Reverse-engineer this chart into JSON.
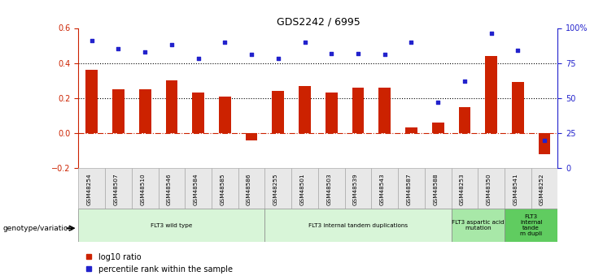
{
  "title": "GDS2242 / 6995",
  "samples": [
    "GSM48254",
    "GSM48507",
    "GSM48510",
    "GSM48546",
    "GSM48584",
    "GSM48585",
    "GSM48586",
    "GSM48255",
    "GSM48501",
    "GSM48503",
    "GSM48539",
    "GSM48543",
    "GSM48587",
    "GSM48588",
    "GSM48253",
    "GSM48350",
    "GSM48541",
    "GSM48252"
  ],
  "log10_ratio": [
    0.36,
    0.25,
    0.25,
    0.3,
    0.23,
    0.21,
    -0.04,
    0.24,
    0.27,
    0.23,
    0.26,
    0.26,
    0.03,
    0.06,
    0.15,
    0.44,
    0.29,
    -0.12
  ],
  "percentile_rank": [
    91,
    85,
    83,
    88,
    78,
    90,
    81,
    78,
    90,
    82,
    82,
    81,
    90,
    47,
    62,
    96,
    84,
    20
  ],
  "bar_color": "#cc2200",
  "dot_color": "#2222cc",
  "ylim_left": [
    -0.2,
    0.6
  ],
  "ylim_right": [
    0,
    100
  ],
  "yticks_left": [
    -0.2,
    0.0,
    0.2,
    0.4,
    0.6
  ],
  "yticks_right": [
    0,
    25,
    50,
    75,
    100
  ],
  "ytick_labels_right": [
    "0",
    "25",
    "50",
    "75",
    "100%"
  ],
  "groups": [
    {
      "label": "FLT3 wild type",
      "start": 0,
      "end": 6,
      "color": "#d8f5d8"
    },
    {
      "label": "FLT3 internal tandem duplications",
      "start": 7,
      "end": 13,
      "color": "#d8f5d8"
    },
    {
      "label": "FLT3 aspartic acid\nmutation",
      "start": 14,
      "end": 15,
      "color": "#a8e8a8"
    },
    {
      "label": "FLT3\ninternal\ntande\nm dupli",
      "start": 16,
      "end": 17,
      "color": "#60cc60"
    }
  ],
  "legend_bar_label": "log10 ratio",
  "legend_dot_label": "percentile rank within the sample",
  "genotype_label": "genotype/variation",
  "left_axis_color": "#cc2200",
  "right_axis_color": "#2222cc"
}
